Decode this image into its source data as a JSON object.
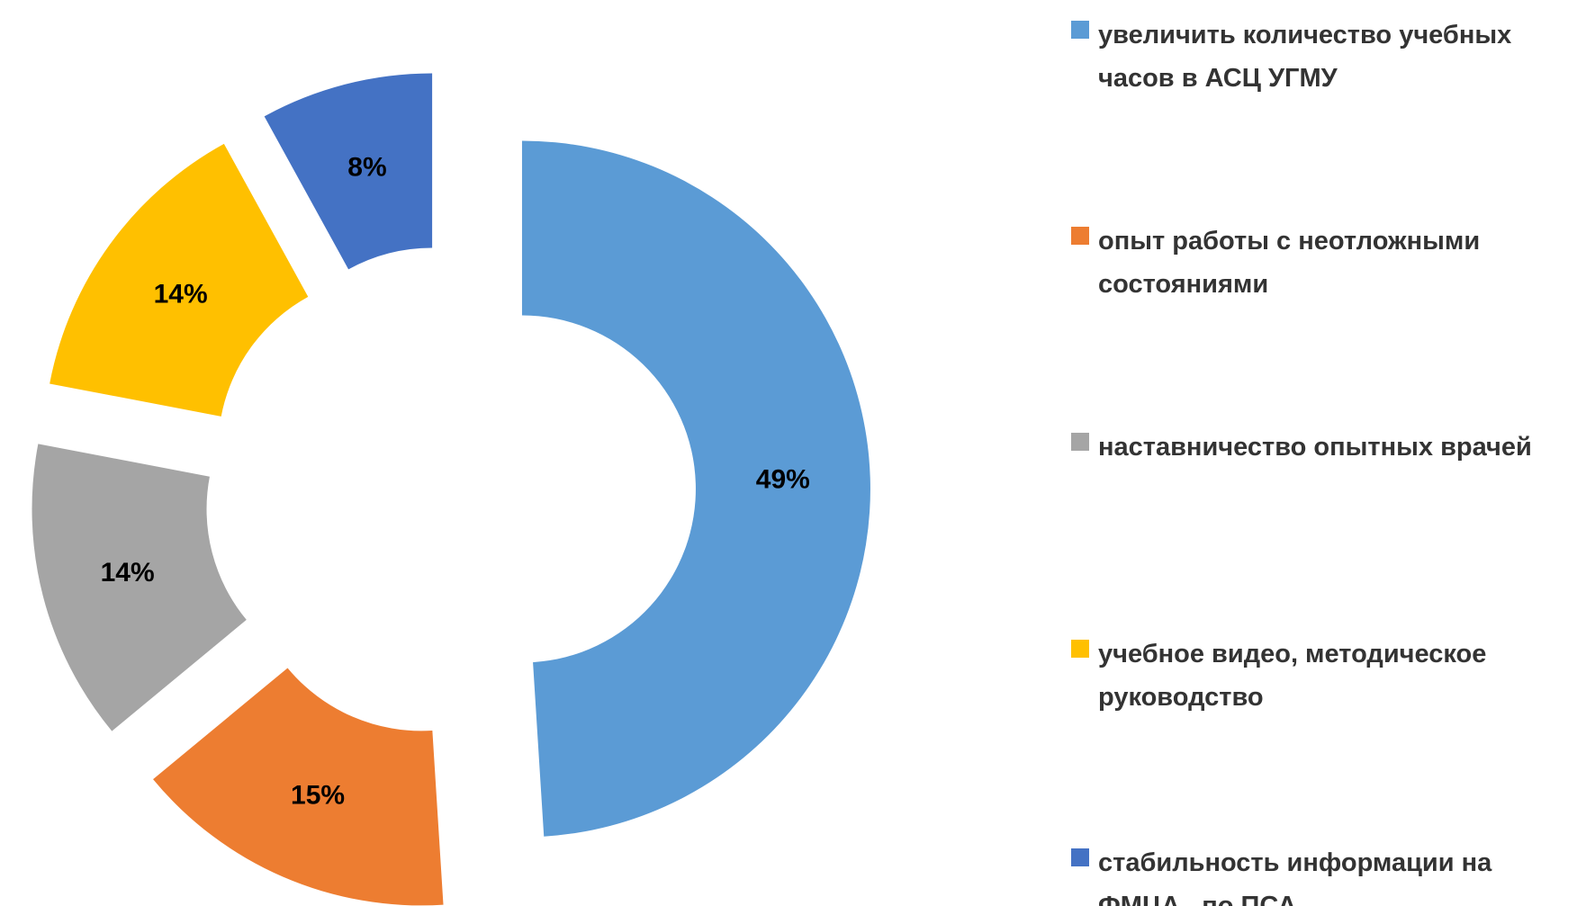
{
  "chart_data": {
    "type": "donut",
    "categories": [
      "увеличить количество учебных часов в АСЦ УГМУ",
      "опыт работы с неотложными состояниями",
      "наставничество опытных врачей",
      "учебное видео, методическое руководство",
      "стабильность информации на ФМЦА   по ПСА"
    ],
    "values": [
      49,
      15,
      14,
      14,
      8
    ],
    "value_labels": [
      "49%",
      "15%",
      "14%",
      "14%",
      "8%"
    ],
    "colors": [
      "#5b9bd5",
      "#ed7d31",
      "#a5a5a5",
      "#ffc000",
      "#4472c4"
    ],
    "legend": "right"
  }
}
